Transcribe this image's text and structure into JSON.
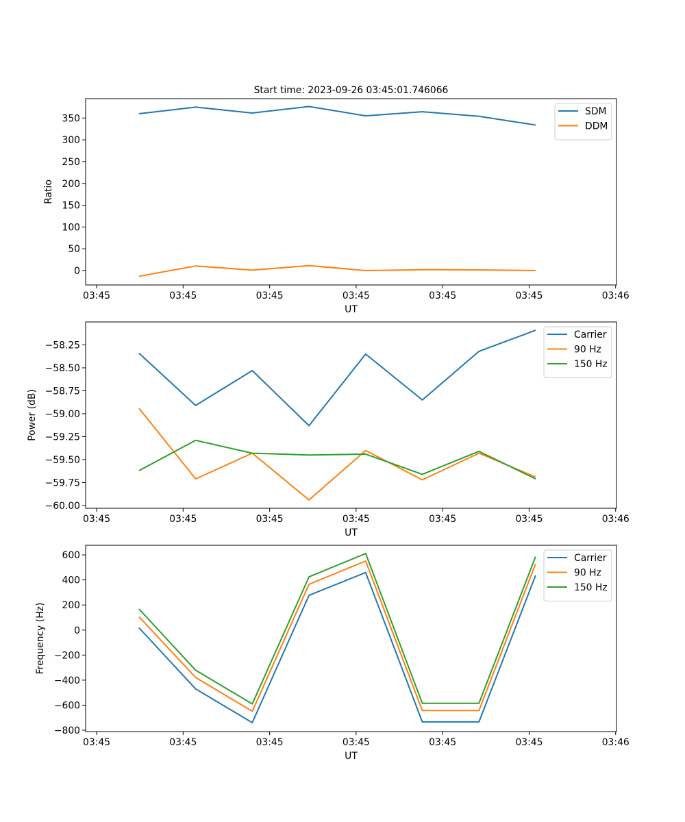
{
  "chart_data": {
    "type": "line",
    "title": "Start time: 2023-09-26 03:45:01.746066",
    "x_ticks": [
      "03:45",
      "03:45",
      "03:45",
      "03:45",
      "03:45",
      "03:45",
      "03:46"
    ],
    "x_tick_positions": [
      0,
      1,
      2,
      3,
      4,
      5,
      6
    ],
    "xlim": [
      -0.127,
      6.01
    ],
    "x": [
      0.49,
      1.145,
      1.8,
      2.455,
      3.11,
      3.765,
      4.42,
      5.075
    ],
    "subplots": [
      {
        "xlabel": "UT",
        "ylabel": "Ratio",
        "ylim": [
          -33,
          394.5
        ],
        "yticks": [
          0,
          50,
          100,
          150,
          200,
          250,
          300,
          350
        ],
        "ytick_labels": [
          "0",
          "50",
          "100",
          "150",
          "200",
          "250",
          "300",
          "350"
        ],
        "legend": "top-right",
        "series": [
          {
            "name": "SDM",
            "color": "#1f77b4",
            "values": [
              360,
              375,
              361.5,
              376.5,
              355,
              364.5,
              354,
              334
            ]
          },
          {
            "name": "DDM",
            "color": "#ff7f0e",
            "values": [
              -13,
              10.5,
              1,
              11.5,
              0,
              2,
              1.5,
              0
            ]
          }
        ]
      },
      {
        "xlabel": "UT",
        "ylabel": "Power (dB)",
        "ylim": [
          -60.03,
          -58.0
        ],
        "yticks": [
          -60.0,
          -59.75,
          -59.5,
          -59.25,
          -59.0,
          -58.75,
          -58.5,
          -58.25
        ],
        "ytick_labels": [
          "−60.00",
          "−59.75",
          "−59.50",
          "−59.25",
          "−59.00",
          "−58.75",
          "−58.50",
          "−58.25"
        ],
        "legend": "top-right",
        "series": [
          {
            "name": "Carrier",
            "color": "#1f77b4",
            "values": [
              -58.34,
              -58.91,
              -58.53,
              -59.13,
              -58.35,
              -58.85,
              -58.32,
              -58.09
            ]
          },
          {
            "name": "90 Hz",
            "color": "#ff7f0e",
            "values": [
              -58.94,
              -59.71,
              -59.43,
              -59.94,
              -59.4,
              -59.72,
              -59.43,
              -59.69
            ]
          },
          {
            "name": "150 Hz",
            "color": "#2ca02c",
            "values": [
              -59.62,
              -59.29,
              -59.43,
              -59.45,
              -59.44,
              -59.66,
              -59.41,
              -59.71
            ]
          }
        ]
      },
      {
        "xlabel": "UT",
        "ylabel": "Frequency (Hz)",
        "ylim": [
          -811,
          677
        ],
        "yticks": [
          -800,
          -600,
          -400,
          -200,
          0,
          200,
          400,
          600
        ],
        "ytick_labels": [
          "−800",
          "−600",
          "−400",
          "−200",
          "0",
          "200",
          "400",
          "600"
        ],
        "legend": "top-right",
        "series": [
          {
            "name": "Carrier",
            "color": "#1f77b4",
            "values": [
              18,
              -470,
              -740,
              277,
              459,
              -734,
              -734,
              437
            ]
          },
          {
            "name": "90 Hz",
            "color": "#ff7f0e",
            "values": [
              106,
              -379,
              -649,
              365,
              551,
              -643,
              -643,
              529
            ]
          },
          {
            "name": "150 Hz",
            "color": "#2ca02c",
            "values": [
              168,
              -321,
              -590,
              425,
              611,
              -585,
              -585,
              587
            ]
          }
        ]
      }
    ]
  }
}
